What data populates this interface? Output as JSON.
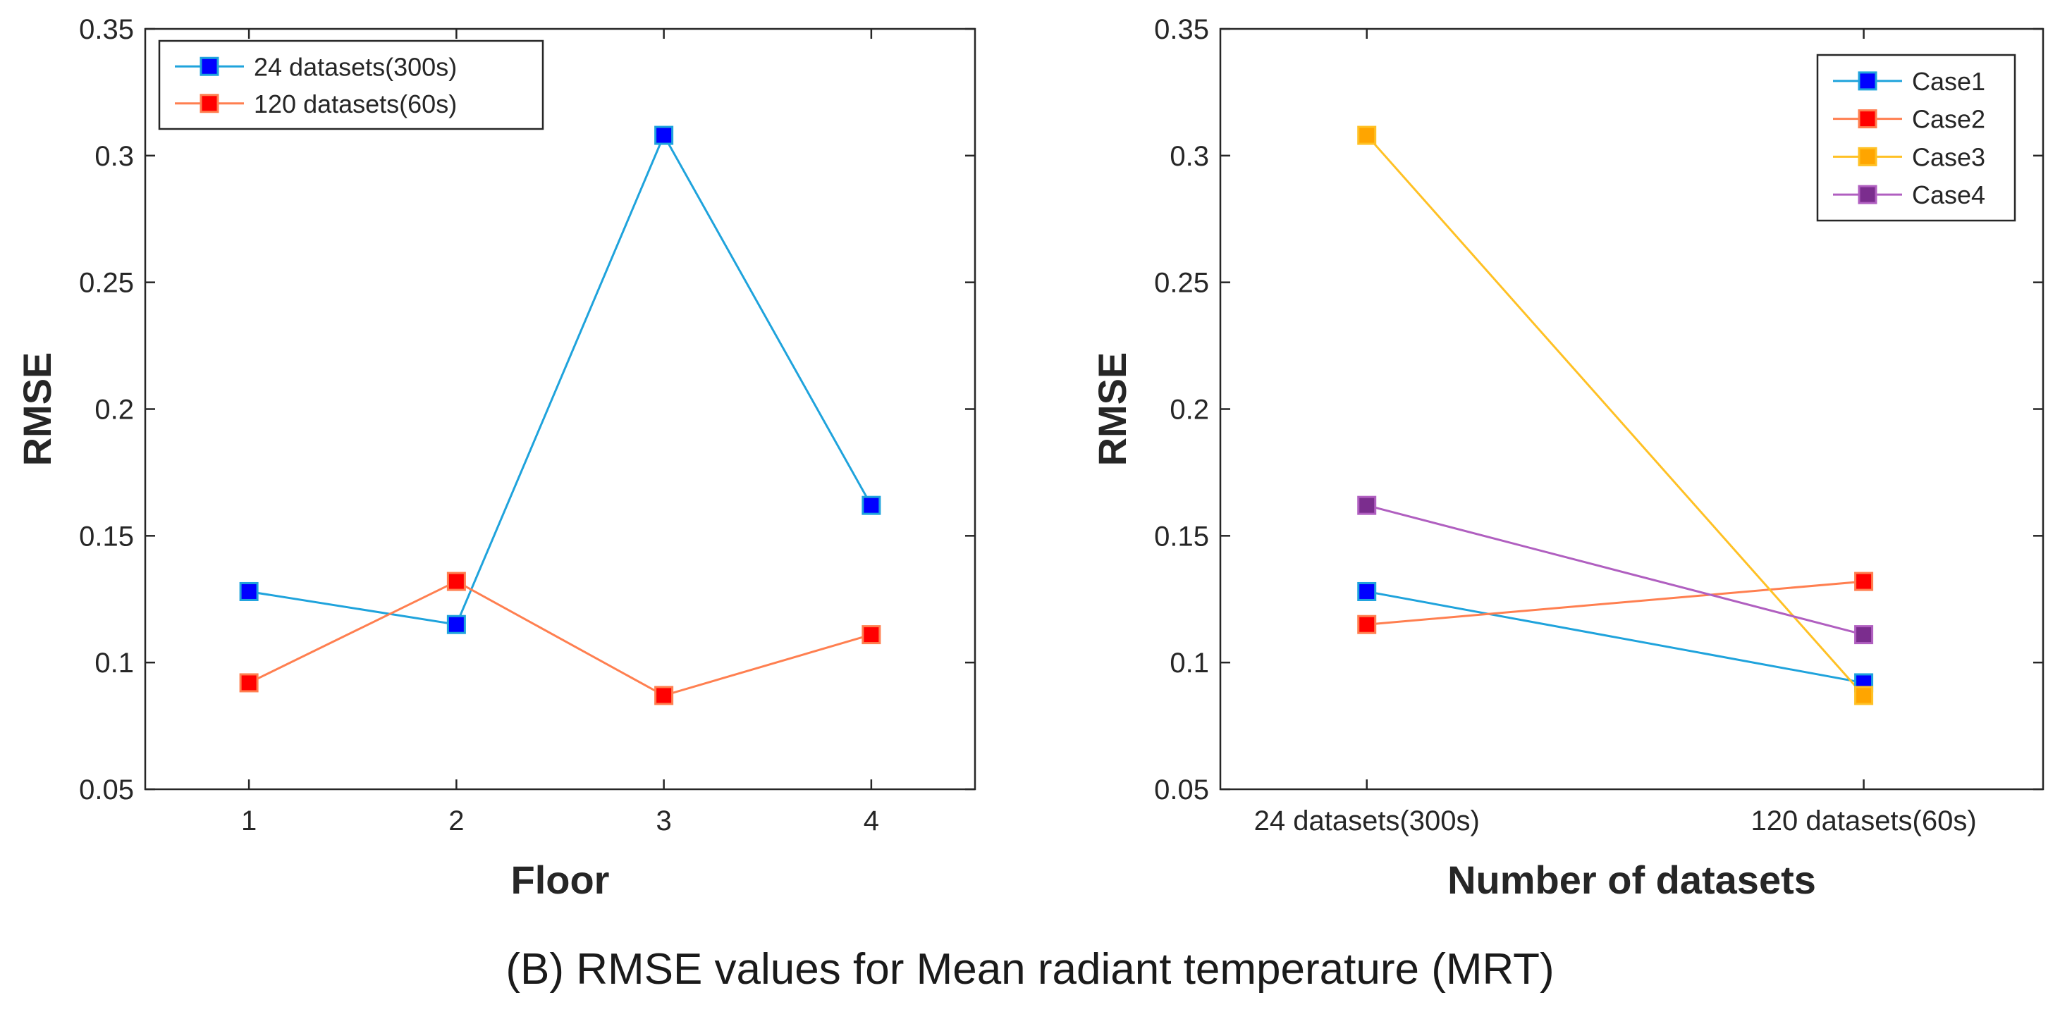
{
  "caption": "(B) RMSE values for Mean radiant temperature (MRT)",
  "chart_data": [
    {
      "type": "line",
      "title": "",
      "xlabel": "Floor",
      "ylabel": "RMSE",
      "categories": [
        "1",
        "2",
        "3",
        "4"
      ],
      "ylim": [
        0.05,
        0.35
      ],
      "yticks": [
        "0.05",
        "0.1",
        "0.15",
        "0.2",
        "0.25",
        "0.3",
        "0.35"
      ],
      "grid": false,
      "legend_position": "top-left",
      "series": [
        {
          "name": "24 datasets(300s)",
          "values": [
            0.128,
            0.115,
            0.308,
            0.162
          ],
          "line_color": "#1fa3dc",
          "marker_color": "#0000ff"
        },
        {
          "name": "120 datasets(60s)",
          "values": [
            0.092,
            0.132,
            0.087,
            0.111
          ],
          "line_color": "#ff7f50",
          "marker_color": "#ff0000"
        }
      ]
    },
    {
      "type": "line",
      "title": "",
      "xlabel": "Number of datasets",
      "ylabel": "RMSE",
      "categories": [
        "24 datasets(300s)",
        "120 datasets(60s)"
      ],
      "ylim": [
        0.05,
        0.35
      ],
      "yticks": [
        "0.05",
        "0.1",
        "0.15",
        "0.2",
        "0.25",
        "0.3",
        "0.35"
      ],
      "grid": false,
      "legend_position": "top-right",
      "series": [
        {
          "name": "Case1",
          "values": [
            0.128,
            0.092
          ],
          "line_color": "#1fa3dc",
          "marker_color": "#0000ff"
        },
        {
          "name": "Case2",
          "values": [
            0.115,
            0.132
          ],
          "line_color": "#ff7f50",
          "marker_color": "#ff0000"
        },
        {
          "name": "Case3",
          "values": [
            0.308,
            0.087
          ],
          "line_color": "#ffc125",
          "marker_color": "#ffa500"
        },
        {
          "name": "Case4",
          "values": [
            0.162,
            0.111
          ],
          "line_color": "#b05fc0",
          "marker_color": "#7b2d8e"
        }
      ]
    }
  ]
}
